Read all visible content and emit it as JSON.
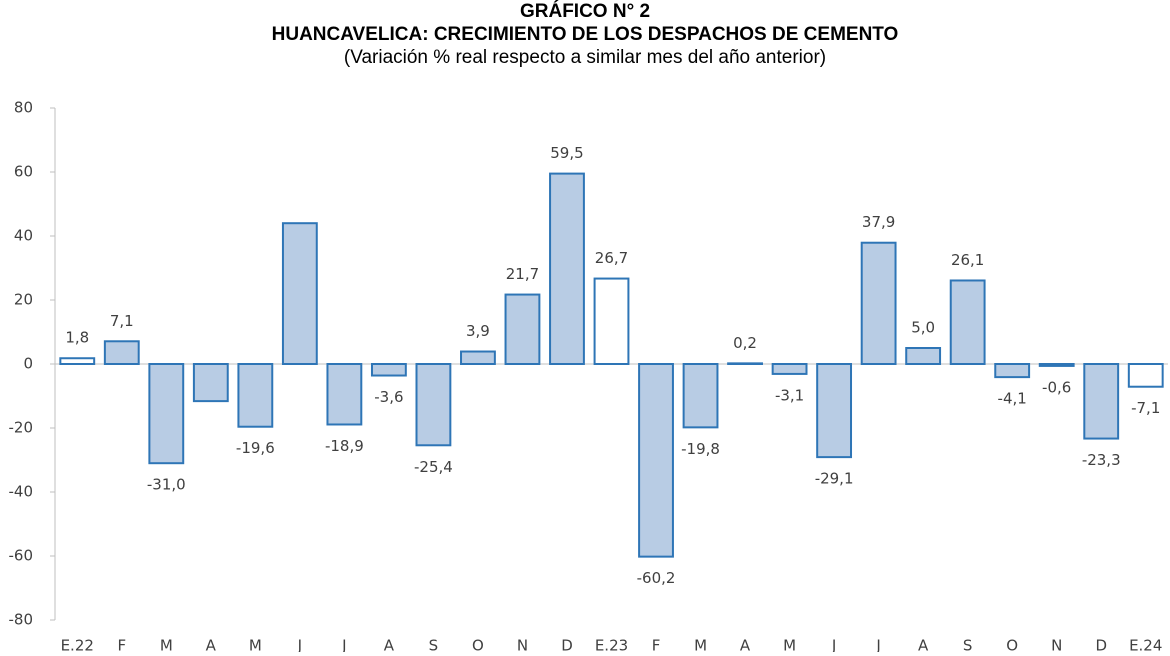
{
  "chart_data": {
    "type": "bar",
    "title": [
      "GRÁFICO N° 2",
      "HUANCAVELICA: CRECIMIENTO DE LOS DESPACHOS DE CEMENTO"
    ],
    "subtitle": "(Variación % real respecto a similar mes del año anterior)",
    "categories": [
      "E.22",
      "F",
      "M",
      "A",
      "M",
      "J",
      "J",
      "A",
      "S",
      "O",
      "N",
      "D",
      "E.23",
      "F",
      "M",
      "A",
      "M",
      "J",
      "J",
      "A",
      "S",
      "O",
      "N",
      "D",
      "E.24"
    ],
    "values": [
      1.8,
      7.1,
      -31.0,
      -11.6,
      -19.6,
      44.0,
      -18.9,
      -3.6,
      -25.4,
      3.9,
      21.7,
      59.5,
      26.7,
      -60.2,
      -19.8,
      0.2,
      -3.1,
      -29.1,
      37.9,
      5.0,
      26.1,
      -4.1,
      -0.6,
      -23.3,
      -7.1
    ],
    "value_labels": [
      "1,8",
      "7,1",
      "-31,0",
      null,
      "-19,6",
      null,
      "-18,9",
      "-3,6",
      "-25,4",
      "3,9",
      "21,7",
      "59,5",
      "26,7",
      "-60,2",
      "-19,8",
      "0,2",
      "-3,1",
      "-29,1",
      "37,9",
      "5,0",
      "26,1",
      "-4,1",
      "-0,6",
      "-23,3",
      "-7,1"
    ],
    "colors": [
      "#ffffff",
      "#b8cce4",
      "#b8cce4",
      "#b8cce4",
      "#b8cce4",
      "#b8cce4",
      "#b8cce4",
      "#b8cce4",
      "#b8cce4",
      "#b8cce4",
      "#b8cce4",
      "#b8cce4",
      "#ffffff",
      "#b8cce4",
      "#b8cce4",
      "#b8cce4",
      "#b8cce4",
      "#b8cce4",
      "#b8cce4",
      "#b8cce4",
      "#b8cce4",
      "#b8cce4",
      "#b8cce4",
      "#b8cce4",
      "#ffffff"
    ],
    "edge_color": "#2e75b6",
    "ylim": [
      -80,
      80
    ],
    "yticks": [
      -80,
      -60,
      -40,
      -20,
      0,
      20,
      40,
      60,
      80
    ],
    "grid": false
  }
}
